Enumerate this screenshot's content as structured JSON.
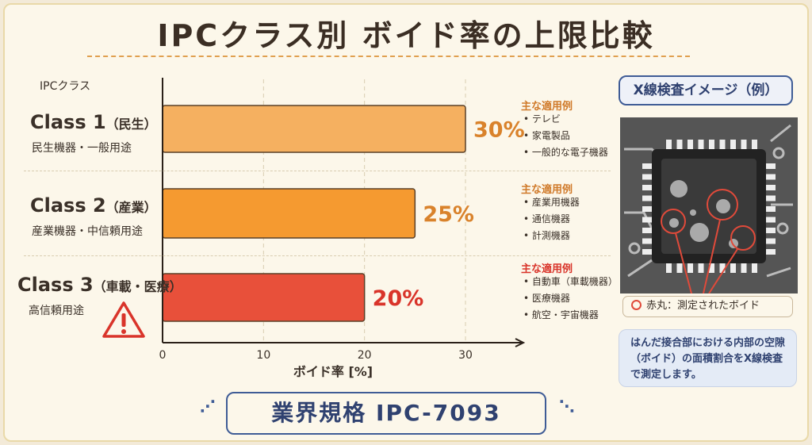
{
  "title": "IPCクラス別 ボイド率の上限比較",
  "chart_data": {
    "type": "bar",
    "orientation": "horizontal",
    "title": "IPCクラス別 ボイド率の上限比較",
    "ylabel": "IPCクラス",
    "xlabel": "ボイド率 [%]",
    "xlim": [
      0,
      30
    ],
    "xticks": [
      "0",
      "10",
      "20",
      "30"
    ],
    "categories": [
      "Class 1（民生）",
      "Class 2（産業）",
      "Class 3（車載・医療）"
    ],
    "values": [
      30,
      25,
      20
    ],
    "value_labels": [
      "30%",
      "25%",
      "20%"
    ],
    "colors": [
      "#f5b060",
      "#f59a30",
      "#e8503a"
    ],
    "label_colors": [
      "#d9822b",
      "#d9822b",
      "#d9342a"
    ]
  },
  "rows": [
    {
      "name": "Class 1",
      "tag": "（民生）",
      "sub": "民生機器・一般用途",
      "ex_title": "主な適用例",
      "examples": [
        "テレビ",
        "家電製品",
        "一般的な電子機器"
      ]
    },
    {
      "name": "Class 2",
      "tag": "（産業）",
      "sub": "産業機器・中信頼用途",
      "ex_title": "主な適用例",
      "examples": [
        "産業用機器",
        "通信機器",
        "計測機器"
      ]
    },
    {
      "name": "Class 3",
      "tag": "（車載・医療）",
      "sub": "高信頼用途",
      "ex_title": "主な適用例",
      "examples": [
        "自動車（車載機器）",
        "医療機器",
        "航空・宇宙機器"
      ]
    }
  ],
  "panel": {
    "title": "X線検査イメージ（例）",
    "legend": "赤丸：測定されたボイド",
    "desc": "はんだ接合部における内部の空隙（ボイド）の面積割合をX線検査で測定します。"
  },
  "footer": "業界規格 IPC-7093"
}
